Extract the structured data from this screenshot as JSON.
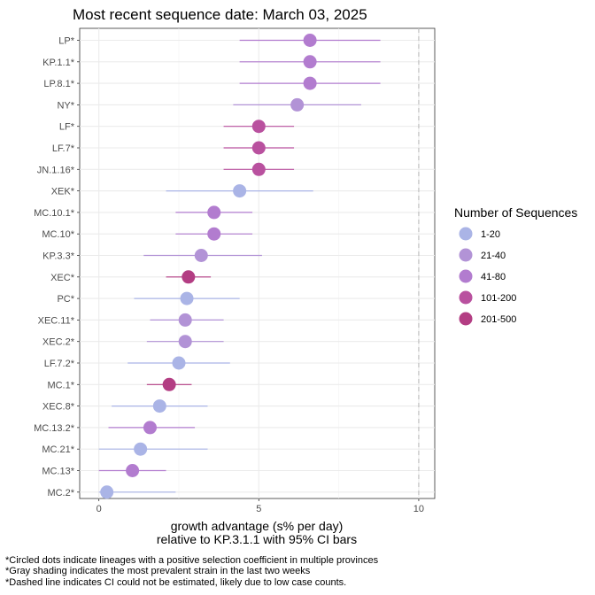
{
  "chart_data": {
    "type": "scatter",
    "subtype": "dot-with-ci",
    "title": "Most recent sequence date: March 03, 2025",
    "xlabel_line1": "growth advantage (s% per day)",
    "xlabel_line2": "relative to  KP.3.1.1  with 95% CI bars",
    "xlim": [
      -0.6,
      10.5
    ],
    "xticks": [
      0,
      5,
      10
    ],
    "reference_line": {
      "x": 10,
      "style": "dashed",
      "color": "#bfbfbf"
    },
    "grid": true,
    "legend": {
      "title": "Number of Sequences",
      "placement": "right",
      "items": [
        {
          "label": "1-20",
          "color": "#aab4e6"
        },
        {
          "label": "21-40",
          "color": "#b293d6"
        },
        {
          "label": "41-80",
          "color": "#b27ccf"
        },
        {
          "label": "101-200",
          "color": "#b9519f"
        },
        {
          "label": "201-500",
          "color": "#b33d83"
        }
      ]
    },
    "points": [
      {
        "label": "LP*",
        "value": 6.6,
        "ci": [
          4.4,
          8.8
        ],
        "group": "41-80"
      },
      {
        "label": "KP.1.1*",
        "value": 6.6,
        "ci": [
          4.4,
          8.8
        ],
        "group": "41-80"
      },
      {
        "label": "LP.8.1*",
        "value": 6.6,
        "ci": [
          4.4,
          8.8
        ],
        "group": "41-80"
      },
      {
        "label": "NY*",
        "value": 6.2,
        "ci": [
          4.2,
          8.2
        ],
        "group": "21-40"
      },
      {
        "label": "LF*",
        "value": 5.0,
        "ci": [
          3.9,
          6.1
        ],
        "group": "101-200"
      },
      {
        "label": "LF.7*",
        "value": 5.0,
        "ci": [
          3.9,
          6.1
        ],
        "group": "101-200"
      },
      {
        "label": "JN.1.16*",
        "value": 5.0,
        "ci": [
          3.9,
          6.1
        ],
        "group": "101-200"
      },
      {
        "label": "XEK*",
        "value": 4.4,
        "ci": [
          2.1,
          6.7
        ],
        "group": "1-20"
      },
      {
        "label": "MC.10.1*",
        "value": 3.6,
        "ci": [
          2.4,
          4.8
        ],
        "group": "41-80"
      },
      {
        "label": "MC.10*",
        "value": 3.6,
        "ci": [
          2.4,
          4.8
        ],
        "group": "41-80"
      },
      {
        "label": "KP.3.3*",
        "value": 3.2,
        "ci": [
          1.4,
          5.1
        ],
        "group": "21-40"
      },
      {
        "label": "XEC*",
        "value": 2.8,
        "ci": [
          2.1,
          3.5
        ],
        "group": "201-500"
      },
      {
        "label": "PC*",
        "value": 2.75,
        "ci": [
          1.1,
          4.4
        ],
        "group": "1-20"
      },
      {
        "label": "XEC.11*",
        "value": 2.7,
        "ci": [
          1.6,
          3.9
        ],
        "group": "21-40"
      },
      {
        "label": "XEC.2*",
        "value": 2.7,
        "ci": [
          1.5,
          3.9
        ],
        "group": "21-40"
      },
      {
        "label": "LF.7.2*",
        "value": 2.5,
        "ci": [
          0.9,
          4.1
        ],
        "group": "1-20"
      },
      {
        "label": "MC.1*",
        "value": 2.2,
        "ci": [
          1.5,
          2.9
        ],
        "group": "201-500"
      },
      {
        "label": "XEC.8*",
        "value": 1.9,
        "ci": [
          0.4,
          3.4
        ],
        "group": "1-20"
      },
      {
        "label": "MC.13.2*",
        "value": 1.6,
        "ci": [
          0.3,
          3.0
        ],
        "group": "41-80"
      },
      {
        "label": "MC.21*",
        "value": 1.3,
        "ci": [
          0.0,
          3.4
        ],
        "group": "1-20"
      },
      {
        "label": "MC.13*",
        "value": 1.05,
        "ci": [
          0.0,
          2.1
        ],
        "group": "41-80"
      },
      {
        "label": "MC.2*",
        "value": 0.25,
        "ci": [
          0.0,
          2.4
        ],
        "group": "1-20"
      }
    ]
  },
  "footnotes": [
    "*Circled dots indicate lineages with a positive selection coefficient in multiple provinces",
    "*Gray shading indicates the most prevalent strain in the last two weeks",
    "*Dashed line indicates CI could not be estimated, likely due to low case counts."
  ]
}
